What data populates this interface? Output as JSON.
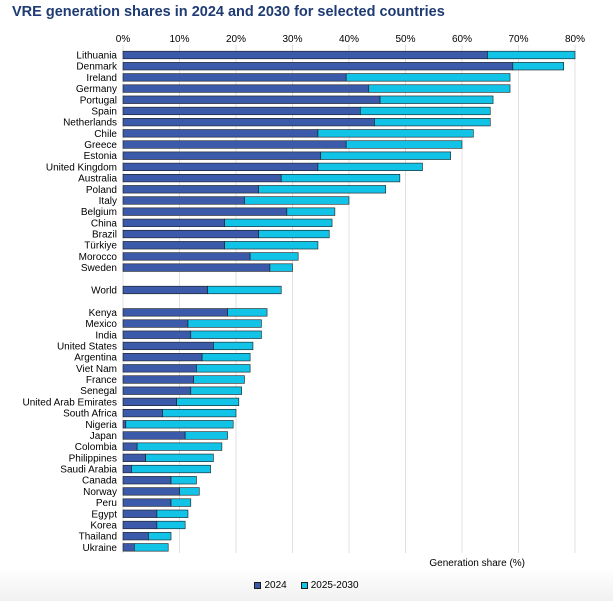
{
  "chart_data": {
    "type": "bar",
    "orientation": "horizontal",
    "stacked": true,
    "title": "VRE generation shares in 2024 and 2030 for selected countries",
    "xlabel": "Generation share (%)",
    "xlim": [
      0,
      80
    ],
    "x_ticks": [
      "0%",
      "10%",
      "20%",
      "30%",
      "40%",
      "50%",
      "60%",
      "70%",
      "80%"
    ],
    "legend_position": "bottom",
    "grid": true,
    "categories": [
      "Lithuania",
      "Denmark",
      "Ireland",
      "Germany",
      "Portugal",
      "Spain",
      "Netherlands",
      "Chile",
      "Greece",
      "Estonia",
      "United Kingdom",
      "Australia",
      "Poland",
      "Italy",
      "Belgium",
      "China",
      "Brazil",
      "Türkiye",
      "Morocco",
      "Sweden",
      "",
      "World",
      "",
      "Kenya",
      "Mexico",
      "India",
      "United States",
      "Argentina",
      "Viet Nam",
      "France",
      "Senegal",
      "United Arab Emirates",
      "South Africa",
      "Nigeria",
      "Japan",
      "Colombia",
      "Philippines",
      "Saudi Arabia",
      "Canada",
      "Norway",
      "Peru",
      "Egypt",
      "Korea",
      "Thailand",
      "Ukraine"
    ],
    "series": [
      {
        "name": "2024",
        "color": "#3b5aaa",
        "values": [
          64.5,
          69,
          39.5,
          43.5,
          45.5,
          42,
          44.5,
          34.5,
          39.5,
          35,
          34.5,
          28,
          24,
          21.5,
          29,
          18,
          24,
          18,
          22.5,
          26,
          null,
          15,
          null,
          18.5,
          11.5,
          12,
          16,
          14,
          13,
          12.5,
          12,
          9.5,
          7,
          0.5,
          11,
          2.5,
          4,
          1.5,
          8.5,
          10,
          8.5,
          6,
          6,
          4.5,
          2
        ]
      },
      {
        "name": "2025-2030",
        "color": "#12c3e8",
        "values": [
          15.5,
          9,
          29,
          25,
          20,
          23,
          20.5,
          27.5,
          20.5,
          23,
          18.5,
          21,
          22.5,
          18.5,
          8.5,
          19,
          12.5,
          16.5,
          8.5,
          4,
          null,
          13,
          null,
          7,
          13,
          12.5,
          7,
          8.5,
          9.5,
          9,
          9,
          11,
          13,
          19,
          7.5,
          15,
          12,
          14,
          4.5,
          3.5,
          3.5,
          5.5,
          5,
          4,
          6
        ]
      }
    ]
  }
}
